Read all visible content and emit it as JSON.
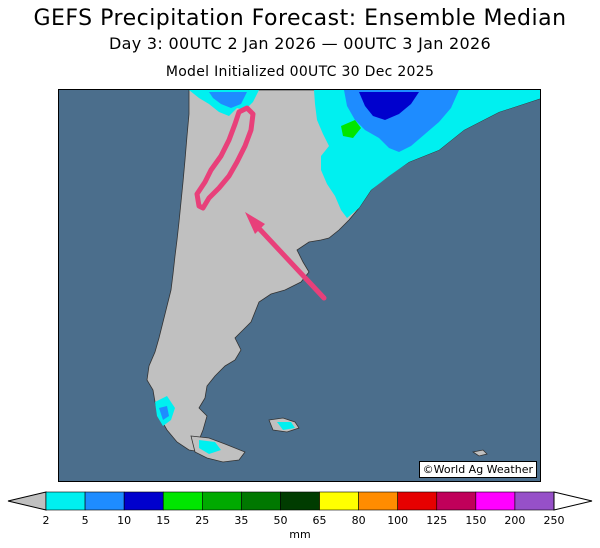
{
  "header": {
    "title": "GEFS Precipitation Forecast: Ensemble Median",
    "valid_period": "Day 3: 00UTC 2 Jan 2026 — 00UTC 3 Jan 2026",
    "init": "Model Initialized 00UTC 30 Dec 2025"
  },
  "credit": "©World Ag Weather",
  "colorbar": {
    "unit": "mm",
    "ticks": [
      "2",
      "5",
      "10",
      "15",
      "25",
      "35",
      "50",
      "65",
      "80",
      "100",
      "125",
      "150",
      "200",
      "250"
    ],
    "colors": [
      "#00f0f0",
      "#1e8cff",
      "#0000cd",
      "#00e600",
      "#00aa00",
      "#007800",
      "#003c00",
      "#ffff00",
      "#ff8c00",
      "#e60000",
      "#c0005a",
      "#ff00ff",
      "#9650c8"
    ],
    "below_color": "#c0c0c0",
    "above_color": "#ffffff"
  },
  "map": {
    "ocean_color": "#4b6e8c",
    "land_color": "#c0c0c0",
    "highlight_color": "#e8407a"
  }
}
